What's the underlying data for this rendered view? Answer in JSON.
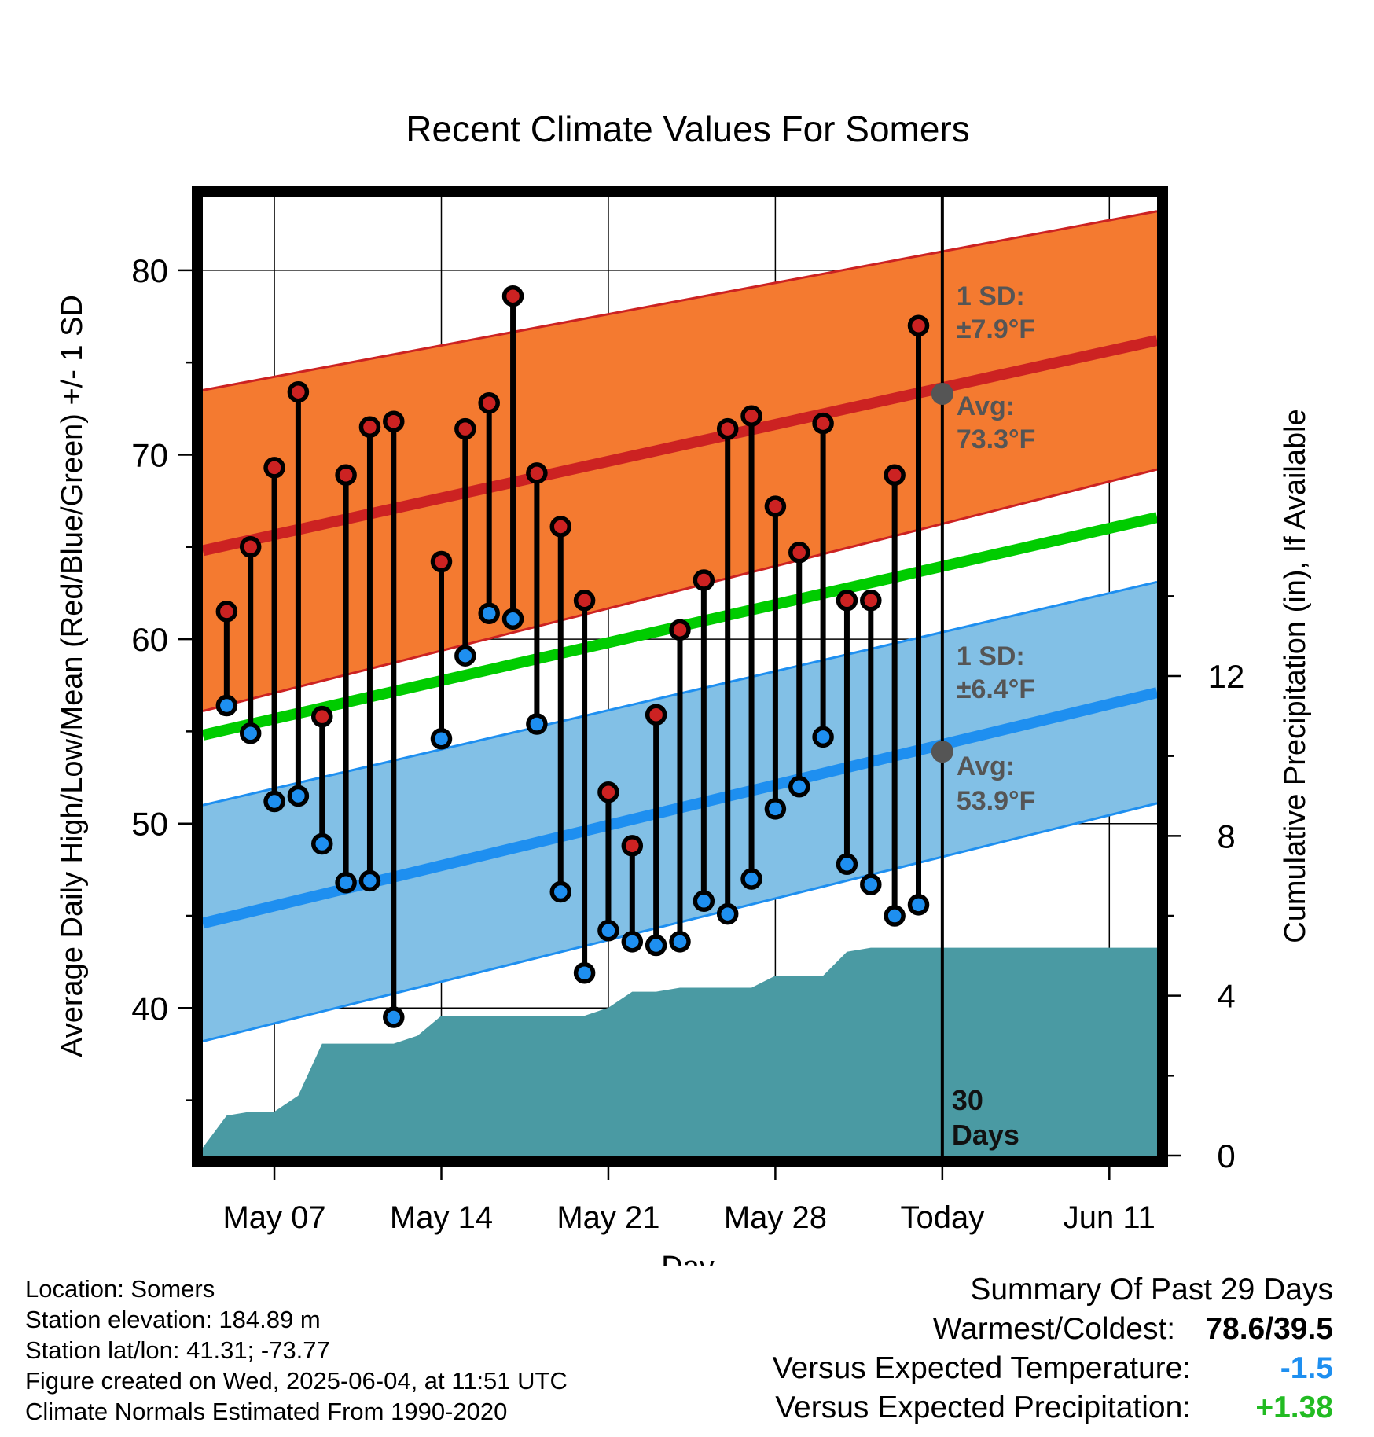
{
  "chart_data": {
    "type": "line",
    "title": "Recent Climate Values For Somers",
    "xlabel": "Day",
    "ylabel": "Average Daily High/Low/Mean (Red/Blue/Green) +/- 1 SD",
    "y2label": "Cumulative Precipitation (in), If Available",
    "ylim": [
      32,
      84
    ],
    "y2lim": [
      0,
      24
    ],
    "yticks": [
      40,
      50,
      60,
      70,
      80
    ],
    "y2ticks": [
      0,
      4,
      8,
      12
    ],
    "xlim": [
      "2025-05-04",
      "2025-06-13"
    ],
    "xticks": [
      {
        "date": "2025-05-07",
        "label": "May 07"
      },
      {
        "date": "2025-05-14",
        "label": "May 14"
      },
      {
        "date": "2025-05-21",
        "label": "May 21"
      },
      {
        "date": "2025-05-28",
        "label": "May 28"
      },
      {
        "date": "2025-06-04",
        "label": "Today"
      },
      {
        "date": "2025-06-11",
        "label": "Jun 11"
      }
    ],
    "today": "2025-06-04",
    "today_label_line1": "30",
    "today_label_line2": "Days",
    "colors": {
      "high_band": "#f47a30",
      "high_line": "#cc2222",
      "low_band": "#82c0e6",
      "low_line": "#1e8ff0",
      "mean_line": "#00cc00",
      "precip": "#4a9aa3",
      "high_dot": "#cc2222",
      "low_dot": "#1e8ff0",
      "today_dot": "#555555"
    },
    "normals": {
      "dates": [
        "2025-05-04",
        "2025-06-13"
      ],
      "high_avg": [
        64.8,
        76.2
      ],
      "high_sd": [
        8.7,
        7.0
      ],
      "low_avg": [
        44.6,
        57.1
      ],
      "low_sd": [
        6.4,
        6.0
      ],
      "mean": [
        54.8,
        66.6
      ]
    },
    "series": [
      {
        "name": "High",
        "x": [
          "2025-05-05",
          "2025-05-06",
          "2025-05-07",
          "2025-05-08",
          "2025-05-09",
          "2025-05-10",
          "2025-05-11",
          "2025-05-12",
          "2025-05-14",
          "2025-05-15",
          "2025-05-16",
          "2025-05-17",
          "2025-05-18",
          "2025-05-19",
          "2025-05-20",
          "2025-05-21",
          "2025-05-22",
          "2025-05-23",
          "2025-05-24",
          "2025-05-25",
          "2025-05-26",
          "2025-05-27",
          "2025-05-28",
          "2025-05-29",
          "2025-05-30",
          "2025-05-31",
          "2025-06-01",
          "2025-06-02",
          "2025-06-03"
        ],
        "values": [
          61.5,
          65.0,
          69.3,
          73.4,
          55.8,
          68.9,
          71.5,
          71.8,
          64.2,
          71.4,
          72.8,
          78.6,
          69.0,
          66.1,
          62.1,
          51.7,
          48.8,
          55.9,
          60.5,
          63.2,
          71.4,
          72.1,
          67.2,
          64.7,
          71.7,
          62.1,
          62.1,
          68.9,
          77.0
        ]
      },
      {
        "name": "Low",
        "x": [
          "2025-05-05",
          "2025-05-06",
          "2025-05-07",
          "2025-05-08",
          "2025-05-09",
          "2025-05-10",
          "2025-05-11",
          "2025-05-12",
          "2025-05-14",
          "2025-05-15",
          "2025-05-16",
          "2025-05-17",
          "2025-05-18",
          "2025-05-19",
          "2025-05-20",
          "2025-05-21",
          "2025-05-22",
          "2025-05-23",
          "2025-05-24",
          "2025-05-25",
          "2025-05-26",
          "2025-05-27",
          "2025-05-28",
          "2025-05-29",
          "2025-05-30",
          "2025-05-31",
          "2025-06-01",
          "2025-06-02",
          "2025-06-03"
        ],
        "values": [
          56.4,
          54.9,
          51.2,
          51.5,
          48.9,
          46.8,
          46.9,
          39.5,
          54.6,
          59.1,
          61.4,
          61.1,
          55.4,
          46.3,
          41.9,
          44.2,
          43.6,
          43.4,
          43.6,
          45.8,
          45.1,
          47.0,
          50.8,
          52.0,
          54.7,
          47.8,
          46.7,
          45.0,
          45.6
        ]
      }
    ],
    "precip": {
      "name": "Cumulative Precipitation",
      "x": [
        "2025-05-04",
        "2025-05-05",
        "2025-05-06",
        "2025-05-07",
        "2025-05-08",
        "2025-05-09",
        "2025-05-10",
        "2025-05-11",
        "2025-05-12",
        "2025-05-13",
        "2025-05-14",
        "2025-05-15",
        "2025-05-16",
        "2025-05-17",
        "2025-05-18",
        "2025-05-19",
        "2025-05-20",
        "2025-05-21",
        "2025-05-22",
        "2025-05-23",
        "2025-05-24",
        "2025-05-25",
        "2025-05-26",
        "2025-05-27",
        "2025-05-28",
        "2025-05-29",
        "2025-05-30",
        "2025-05-31",
        "2025-06-01",
        "2025-06-02",
        "2025-06-03",
        "2025-06-04",
        "2025-06-13"
      ],
      "values": [
        0.2,
        1.0,
        1.1,
        1.1,
        1.5,
        2.8,
        2.8,
        2.8,
        2.8,
        3.0,
        3.5,
        3.5,
        3.5,
        3.5,
        3.5,
        3.5,
        3.5,
        3.7,
        4.1,
        4.1,
        4.2,
        4.2,
        4.2,
        4.2,
        4.5,
        4.5,
        4.5,
        5.1,
        5.2,
        5.2,
        5.2,
        5.2,
        5.2
      ]
    },
    "annotations": {
      "high_sd_line1": "1 SD:",
      "high_sd_line2": "±7.9°F",
      "high_avg_line1": "Avg:",
      "high_avg_line2": "73.3°F",
      "high_avg_value": 73.3,
      "low_sd_line1": "1 SD:",
      "low_sd_line2": "±6.4°F",
      "low_avg_line1": "Avg:",
      "low_avg_line2": "53.9°F",
      "low_avg_value": 53.9
    }
  },
  "footer": {
    "location": "Location: Somers",
    "elevation": "Station elevation: 184.89 m",
    "latlon": "Station lat/lon: 41.31; -73.77",
    "created": "Figure created on Wed, 2025-06-04, at 11:51 UTC",
    "normals": "Climate Normals Estimated From 1990-2020"
  },
  "summary": {
    "title": "Summary Of Past 29 Days",
    "warm_cold_label": "Warmest/Coldest:",
    "warm_cold_value": "78.6/39.5",
    "temp_label": "Versus Expected Temperature:",
    "temp_value": "-1.5",
    "temp_color": "#1e8ff0",
    "precip_label": "Versus Expected Precipitation:",
    "precip_value": "+1.38",
    "precip_color": "#22bb22"
  }
}
